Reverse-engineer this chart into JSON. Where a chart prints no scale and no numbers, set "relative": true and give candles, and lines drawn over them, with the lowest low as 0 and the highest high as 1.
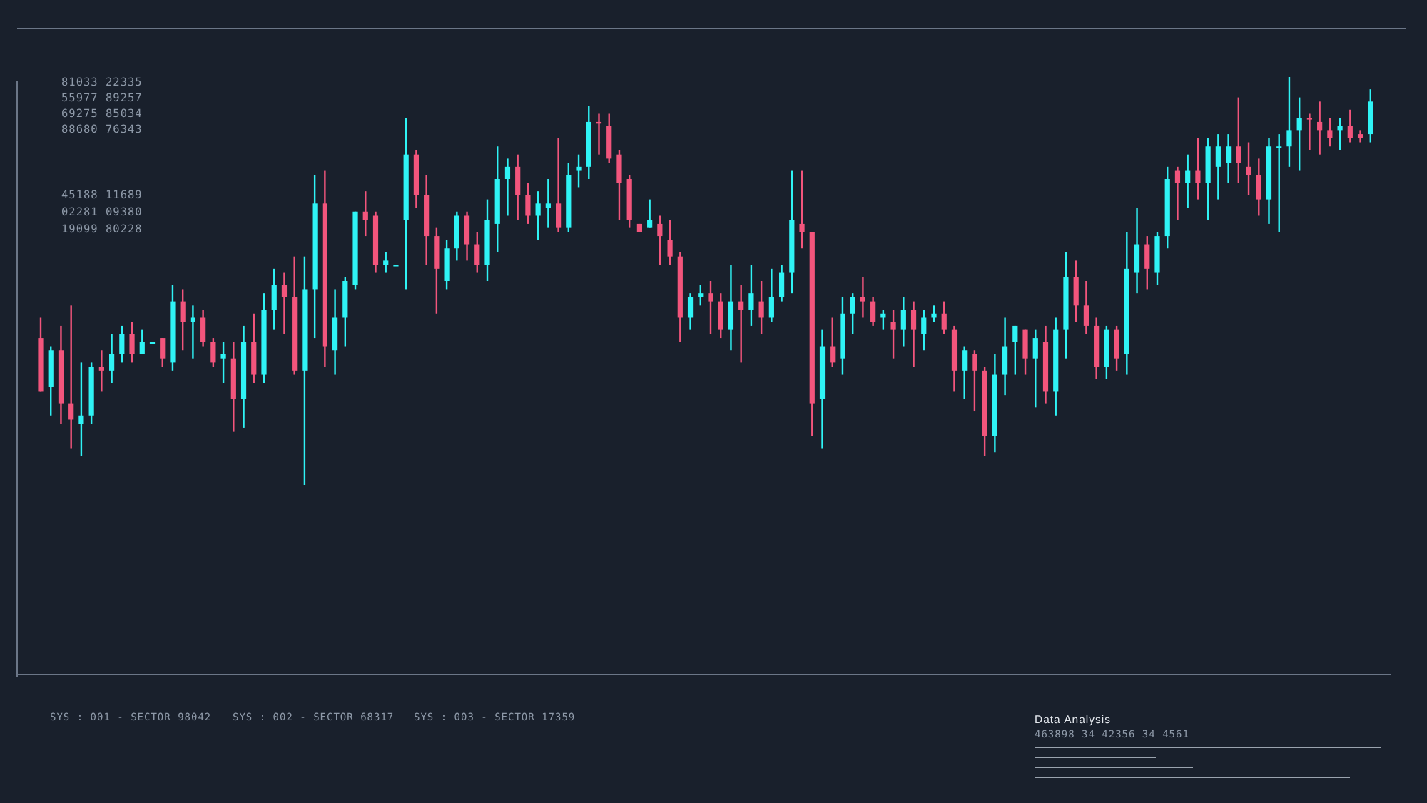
{
  "chart_data": {
    "type": "candlestick",
    "relative": true,
    "categories": [
      null,
      null,
      null,
      null,
      null,
      null,
      null,
      null,
      null,
      null,
      null,
      null,
      null,
      null,
      null,
      null,
      null,
      null,
      null,
      null,
      null,
      null,
      null,
      null,
      null,
      null,
      null,
      null,
      null,
      null,
      null,
      null,
      null,
      null,
      null,
      null,
      null,
      null,
      null,
      null,
      null,
      null,
      null,
      null,
      null,
      null,
      null,
      null,
      null,
      null,
      null,
      null,
      null,
      null,
      null,
      null,
      null,
      null,
      null,
      null,
      null,
      null,
      null,
      null,
      null,
      null,
      null,
      null,
      null,
      null,
      null,
      null,
      null,
      null,
      null,
      null,
      null,
      null,
      null,
      null,
      null,
      null,
      null,
      null,
      null,
      null,
      null,
      null,
      null,
      null,
      null,
      null,
      null,
      null,
      null,
      null,
      null,
      null,
      null,
      null,
      null,
      null,
      null,
      null,
      null,
      null,
      null,
      null,
      null,
      null,
      null,
      null,
      null,
      null,
      null,
      null,
      null,
      null,
      null,
      null,
      null,
      null,
      null,
      null,
      null,
      null,
      null,
      null,
      null,
      null,
      null,
      null
    ],
    "ohlc": [
      [
        0.36,
        0.41,
        0.23,
        0.23
      ],
      [
        0.24,
        0.34,
        0.17,
        0.33
      ],
      [
        0.33,
        0.39,
        0.15,
        0.2
      ],
      [
        0.2,
        0.44,
        0.09,
        0.16
      ],
      [
        0.15,
        0.3,
        0.07,
        0.17
      ],
      [
        0.17,
        0.3,
        0.15,
        0.29
      ],
      [
        0.29,
        0.33,
        0.23,
        0.28
      ],
      [
        0.28,
        0.37,
        0.25,
        0.32
      ],
      [
        0.32,
        0.39,
        0.3,
        0.37
      ],
      [
        0.37,
        0.4,
        0.3,
        0.32
      ],
      [
        0.32,
        0.38,
        0.32,
        0.35
      ],
      [
        0.35,
        0.35,
        0.35,
        0.35
      ],
      [
        0.36,
        0.36,
        0.29,
        0.31
      ],
      [
        0.3,
        0.49,
        0.28,
        0.45
      ],
      [
        0.45,
        0.48,
        0.33,
        0.4
      ],
      [
        0.4,
        0.44,
        0.31,
        0.41
      ],
      [
        0.41,
        0.43,
        0.34,
        0.35
      ],
      [
        0.35,
        0.36,
        0.29,
        0.3
      ],
      [
        0.31,
        0.35,
        0.25,
        0.32
      ],
      [
        0.31,
        0.35,
        0.13,
        0.21
      ],
      [
        0.21,
        0.39,
        0.14,
        0.35
      ],
      [
        0.35,
        0.42,
        0.25,
        0.27
      ],
      [
        0.27,
        0.47,
        0.25,
        0.43
      ],
      [
        0.43,
        0.53,
        0.38,
        0.49
      ],
      [
        0.49,
        0.52,
        0.37,
        0.46
      ],
      [
        0.46,
        0.56,
        0.27,
        0.28
      ],
      [
        0.28,
        0.56,
        0,
        0.48
      ],
      [
        0.48,
        0.76,
        0.36,
        0.69
      ],
      [
        0.69,
        0.77,
        0.29,
        0.34
      ],
      [
        0.33,
        0.48,
        0.27,
        0.41
      ],
      [
        0.41,
        0.51,
        0.34,
        0.5
      ],
      [
        0.49,
        0.67,
        0.48,
        0.67
      ],
      [
        0.67,
        0.72,
        0.61,
        0.65
      ],
      [
        0.66,
        0.67,
        0.52,
        0.54
      ],
      [
        0.54,
        0.57,
        0.52,
        0.55
      ],
      [
        0.54,
        0.54,
        0.54,
        0.54
      ],
      [
        0.65,
        0.9,
        0.48,
        0.81
      ],
      [
        0.81,
        0.82,
        0.68,
        0.71
      ],
      [
        0.71,
        0.76,
        0.54,
        0.61
      ],
      [
        0.61,
        0.63,
        0.42,
        0.53
      ],
      [
        0.5,
        0.6,
        0.48,
        0.58
      ],
      [
        0.58,
        0.67,
        0.55,
        0.66
      ],
      [
        0.66,
        0.67,
        0.55,
        0.59
      ],
      [
        0.59,
        0.62,
        0.52,
        0.54
      ],
      [
        0.54,
        0.7,
        0.5,
        0.65
      ],
      [
        0.64,
        0.83,
        0.57,
        0.75
      ],
      [
        0.75,
        0.8,
        0.66,
        0.78
      ],
      [
        0.78,
        0.81,
        0.65,
        0.71
      ],
      [
        0.71,
        0.74,
        0.64,
        0.66
      ],
      [
        0.66,
        0.72,
        0.6,
        0.69
      ],
      [
        0.68,
        0.75,
        0.63,
        0.69
      ],
      [
        0.69,
        0.85,
        0.62,
        0.63
      ],
      [
        0.63,
        0.79,
        0.62,
        0.76
      ],
      [
        0.77,
        0.81,
        0.73,
        0.78
      ],
      [
        0.78,
        0.93,
        0.75,
        0.89
      ],
      [
        0.89,
        0.91,
        0.81,
        0.89
      ],
      [
        0.88,
        0.91,
        0.79,
        0.8
      ],
      [
        0.81,
        0.82,
        0.65,
        0.74
      ],
      [
        0.75,
        0.76,
        0.63,
        0.65
      ],
      [
        0.64,
        0.64,
        0.62,
        0.62
      ],
      [
        0.63,
        0.7,
        0.63,
        0.65
      ],
      [
        0.64,
        0.66,
        0.54,
        0.61
      ],
      [
        0.6,
        0.65,
        0.54,
        0.56
      ],
      [
        0.56,
        0.57,
        0.35,
        0.41
      ],
      [
        0.41,
        0.47,
        0.38,
        0.46
      ],
      [
        0.46,
        0.49,
        0.44,
        0.47
      ],
      [
        0.47,
        0.5,
        0.37,
        0.45
      ],
      [
        0.45,
        0.47,
        0.36,
        0.38
      ],
      [
        0.38,
        0.54,
        0.33,
        0.45
      ],
      [
        0.45,
        0.49,
        0.3,
        0.43
      ],
      [
        0.43,
        0.54,
        0.39,
        0.47
      ],
      [
        0.45,
        0.5,
        0.37,
        0.41
      ],
      [
        0.41,
        0.53,
        0.4,
        0.46
      ],
      [
        0.46,
        0.54,
        0.45,
        0.52
      ],
      [
        0.52,
        0.77,
        0.47,
        0.65
      ],
      [
        0.64,
        0.77,
        0.58,
        0.62
      ],
      [
        0.62,
        0.62,
        0.12,
        0.2
      ],
      [
        0.21,
        0.38,
        0.09,
        0.34
      ],
      [
        0.34,
        0.41,
        0.29,
        0.3
      ],
      [
        0.31,
        0.46,
        0.27,
        0.42
      ],
      [
        0.42,
        0.47,
        0.37,
        0.46
      ],
      [
        0.46,
        0.51,
        0.41,
        0.45
      ],
      [
        0.45,
        0.46,
        0.39,
        0.4
      ],
      [
        0.41,
        0.43,
        0.38,
        0.42
      ],
      [
        0.4,
        0.43,
        0.31,
        0.38
      ],
      [
        0.38,
        0.46,
        0.34,
        0.43
      ],
      [
        0.43,
        0.45,
        0.29,
        0.38
      ],
      [
        0.37,
        0.43,
        0.33,
        0.41
      ],
      [
        0.41,
        0.44,
        0.4,
        0.42
      ],
      [
        0.42,
        0.45,
        0.37,
        0.38
      ],
      [
        0.38,
        0.39,
        0.23,
        0.28
      ],
      [
        0.28,
        0.34,
        0.21,
        0.33
      ],
      [
        0.32,
        0.33,
        0.18,
        0.28
      ],
      [
        0.28,
        0.29,
        0.07,
        0.12
      ],
      [
        0.12,
        0.32,
        0.08,
        0.27
      ],
      [
        0.27,
        0.41,
        0.22,
        0.34
      ],
      [
        0.35,
        0.39,
        0.27,
        0.39
      ],
      [
        0.38,
        0.38,
        0.27,
        0.31
      ],
      [
        0.31,
        0.38,
        0.19,
        0.36
      ],
      [
        0.35,
        0.39,
        0.2,
        0.23
      ],
      [
        0.23,
        0.41,
        0.17,
        0.38
      ],
      [
        0.38,
        0.57,
        0.31,
        0.51
      ],
      [
        0.51,
        0.55,
        0.4,
        0.44
      ],
      [
        0.44,
        0.5,
        0.37,
        0.39
      ],
      [
        0.39,
        0.41,
        0.26,
        0.29
      ],
      [
        0.29,
        0.39,
        0.26,
        0.38
      ],
      [
        0.38,
        0.39,
        0.28,
        0.31
      ],
      [
        0.32,
        0.62,
        0.27,
        0.53
      ],
      [
        0.52,
        0.68,
        0.47,
        0.59
      ],
      [
        0.59,
        0.61,
        0.48,
        0.53
      ],
      [
        0.52,
        0.62,
        0.49,
        0.61
      ],
      [
        0.61,
        0.78,
        0.58,
        0.75
      ],
      [
        0.77,
        0.78,
        0.65,
        0.74
      ],
      [
        0.74,
        0.81,
        0.68,
        0.77
      ],
      [
        0.77,
        0.85,
        0.7,
        0.74
      ],
      [
        0.74,
        0.85,
        0.65,
        0.83
      ],
      [
        0.78,
        0.86,
        0.7,
        0.83
      ],
      [
        0.79,
        0.86,
        0.74,
        0.83
      ],
      [
        0.83,
        0.95,
        0.74,
        0.79
      ],
      [
        0.78,
        0.84,
        0.71,
        0.76
      ],
      [
        0.76,
        0.8,
        0.66,
        0.7
      ],
      [
        0.7,
        0.85,
        0.64,
        0.83
      ],
      [
        0.83,
        0.86,
        0.62,
        0.83
      ],
      [
        0.83,
        1,
        0.78,
        0.87
      ],
      [
        0.87,
        0.95,
        0.77,
        0.9
      ],
      [
        0.9,
        0.91,
        0.82,
        0.9
      ],
      [
        0.89,
        0.94,
        0.81,
        0.87
      ],
      [
        0.87,
        0.9,
        0.83,
        0.85
      ],
      [
        0.87,
        0.9,
        0.82,
        0.88
      ],
      [
        0.88,
        0.92,
        0.84,
        0.85
      ],
      [
        0.86,
        0.87,
        0.84,
        0.85
      ],
      [
        0.86,
        0.97,
        0.84,
        0.94
      ]
    ],
    "colors": [
      "#f2557c",
      "#2ff3f5",
      "#f2557c",
      "#f2557c",
      "#2ff3f5",
      "#2ff3f5",
      "#f2557c",
      "#2ff3f5",
      "#2ff3f5",
      "#f2557c",
      "#2ff3f5",
      "#2ff3f5",
      "#f2557c",
      "#2ff3f5",
      "#f2557c",
      "#2ff3f5",
      "#f2557c",
      "#f2557c",
      "#2ff3f5",
      "#f2557c",
      "#2ff3f5",
      "#f2557c",
      "#2ff3f5",
      "#2ff3f5",
      "#f2557c",
      "#f2557c",
      "#2ff3f5",
      "#2ff3f5",
      "#f2557c",
      "#2ff3f5",
      "#2ff3f5",
      "#2ff3f5",
      "#f2557c",
      "#f2557c",
      "#2ff3f5",
      "#2ff3f5",
      "#2ff3f5",
      "#f2557c",
      "#f2557c",
      "#f2557c",
      "#2ff3f5",
      "#2ff3f5",
      "#f2557c",
      "#f2557c",
      "#2ff3f5",
      "#2ff3f5",
      "#2ff3f5",
      "#f2557c",
      "#f2557c",
      "#2ff3f5",
      "#2ff3f5",
      "#f2557c",
      "#2ff3f5",
      "#2ff3f5",
      "#2ff3f5",
      "#f2557c",
      "#f2557c",
      "#f2557c",
      "#f2557c",
      "#f2557c",
      "#2ff3f5",
      "#f2557c",
      "#f2557c",
      "#f2557c",
      "#2ff3f5",
      "#2ff3f5",
      "#f2557c",
      "#f2557c",
      "#2ff3f5",
      "#f2557c",
      "#2ff3f5",
      "#f2557c",
      "#2ff3f5",
      "#2ff3f5",
      "#2ff3f5",
      "#f2557c",
      "#f2557c",
      "#2ff3f5",
      "#f2557c",
      "#2ff3f5",
      "#2ff3f5",
      "#f2557c",
      "#f2557c",
      "#2ff3f5",
      "#f2557c",
      "#2ff3f5",
      "#f2557c",
      "#2ff3f5",
      "#2ff3f5",
      "#f2557c",
      "#f2557c",
      "#2ff3f5",
      "#f2557c",
      "#f2557c",
      "#2ff3f5",
      "#2ff3f5",
      "#2ff3f5",
      "#f2557c",
      "#2ff3f5",
      "#f2557c",
      "#2ff3f5",
      "#2ff3f5",
      "#f2557c",
      "#f2557c",
      "#f2557c",
      "#2ff3f5",
      "#f2557c",
      "#2ff3f5",
      "#2ff3f5",
      "#f2557c",
      "#2ff3f5",
      "#2ff3f5",
      "#f2557c",
      "#2ff3f5",
      "#f2557c",
      "#2ff3f5",
      "#2ff3f5",
      "#2ff3f5",
      "#f2557c",
      "#f2557c",
      "#f2557c",
      "#2ff3f5",
      "#2ff3f5",
      "#2ff3f5",
      "#2ff3f5",
      "#f2557c",
      "#f2557c",
      "#f2557c",
      "#2ff3f5",
      "#f2557c",
      "#f2557c",
      "#2ff3f5"
    ],
    "annotations": [
      "81033 22335",
      "55977 89257",
      "69275 85034",
      "88680 76343",
      "45188 11689",
      "02281 09380",
      "19099 80228",
      "SYS : 001 - SECTOR 98042",
      "SYS : 002 - SECTOR 68317",
      "SYS : 003 - SECTOR 17359",
      "Data Analysis",
      "463898 34 42356 34 4561"
    ]
  }
}
